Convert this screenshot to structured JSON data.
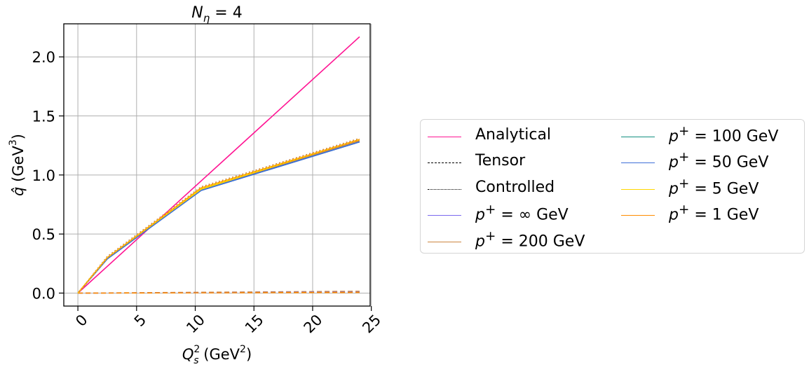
{
  "chart_data": {
    "type": "line",
    "title": "N_η = 4",
    "title_parts": {
      "main": "N",
      "sub": "η",
      "rest": " = 4"
    },
    "xlabel": "Q_s^2 (GeV^2)",
    "xlabel_parts": {
      "main": "Q",
      "sub": "s",
      "sup": "2",
      "rest": " (GeV",
      "rest_sup": "2",
      "end": ")"
    },
    "ylabel": "q̂ (GeV^3)",
    "ylabel_parts": {
      "main": "q̂",
      "rest": " (GeV",
      "rest_sup": "3",
      "end": ")"
    },
    "xlim": [
      -1.2,
      24.9
    ],
    "ylim": [
      -0.11,
      2.28
    ],
    "xticks": [
      "0",
      "5",
      "10",
      "15",
      "20",
      "25"
    ],
    "yticks": [
      "0.0",
      "0.5",
      "1.0",
      "1.5",
      "2.0"
    ],
    "grid": true,
    "legend_position": "outside-right",
    "series": [
      {
        "name": "Analytical",
        "label_html": "Analytical",
        "style": "solid",
        "color": "#ff1493",
        "x": [
          0,
          24
        ],
        "y": [
          0,
          2.17
        ]
      },
      {
        "name": "Tensor",
        "label_html": "Tensor",
        "style": "dashed",
        "color": "#000000",
        "legend_only": true,
        "x": [],
        "y": []
      },
      {
        "name": "Controlled",
        "label_html": "Controlled",
        "style": "dotted",
        "color": "#000000",
        "legend_only": true,
        "x": [],
        "y": []
      },
      {
        "name": "p+ = ∞ GeV",
        "label_html": "<i>p</i><sup>+</sup> = ∞ GeV",
        "style": "solid",
        "color": "#7b68ee",
        "x": [
          0,
          2.5,
          10.5,
          24
        ],
        "y": [
          0,
          0.29,
          0.87,
          1.28
        ]
      },
      {
        "name": "p+ = 200 GeV",
        "label_html": "<i>p</i><sup>+</sup> = 200 GeV",
        "style": "solid",
        "color": "#cd853f",
        "x": [
          0,
          2.5,
          10.5,
          24
        ],
        "y": [
          0,
          0.29,
          0.88,
          1.29
        ]
      },
      {
        "name": "p+ = 100 GeV",
        "label_html": "<i>p</i><sup>+</sup> = 100 GeV",
        "style": "solid",
        "color": "#138f80",
        "x": [
          0,
          2.5,
          10.5,
          24
        ],
        "y": [
          0,
          0.29,
          0.87,
          1.28
        ]
      },
      {
        "name": "p+ = 50 GeV",
        "label_html": "<i>p</i><sup>+</sup> = 50 GeV",
        "style": "solid",
        "color": "#3f6fd8",
        "x": [
          0,
          2.5,
          10.5,
          24
        ],
        "y": [
          0,
          0.29,
          0.87,
          1.28
        ]
      },
      {
        "name": "p+ = 5 GeV",
        "label_html": "<i>p</i><sup>+</sup> = 5 GeV",
        "style": "solid",
        "color": "#ffd700",
        "x": [
          0,
          2.5,
          10.5,
          24
        ],
        "y": [
          0,
          0.3,
          0.88,
          1.3
        ]
      },
      {
        "name": "p+ = 1 GeV",
        "label_html": "<i>p</i><sup>+</sup> = 1 GeV",
        "style": "solid",
        "color": "#ff8c00",
        "x": [
          0,
          2.5,
          10.5,
          24
        ],
        "y": [
          0,
          0.3,
          0.89,
          1.3
        ]
      }
    ],
    "near_zero_series": [
      {
        "style": "dashed",
        "color": "#cd853f",
        "x": [
          0,
          24
        ],
        "y": [
          0,
          0.015
        ]
      },
      {
        "style": "dashed",
        "color": "#7b68ee",
        "x": [
          0,
          24
        ],
        "y": [
          0,
          0.008
        ]
      },
      {
        "style": "dashed",
        "color": "#ff8c00",
        "x": [
          0,
          24
        ],
        "y": [
          0,
          0.005
        ]
      }
    ],
    "controlled_series": [
      {
        "style": "dotted",
        "color": "#cd853f",
        "x": [
          0,
          2.5,
          10.5,
          24
        ],
        "y": [
          0,
          0.31,
          0.9,
          1.31
        ]
      },
      {
        "style": "dotted",
        "color": "#ffd700",
        "x": [
          0,
          2.5,
          10.5,
          24
        ],
        "y": [
          0,
          0.3,
          0.89,
          1.3
        ]
      }
    ]
  }
}
